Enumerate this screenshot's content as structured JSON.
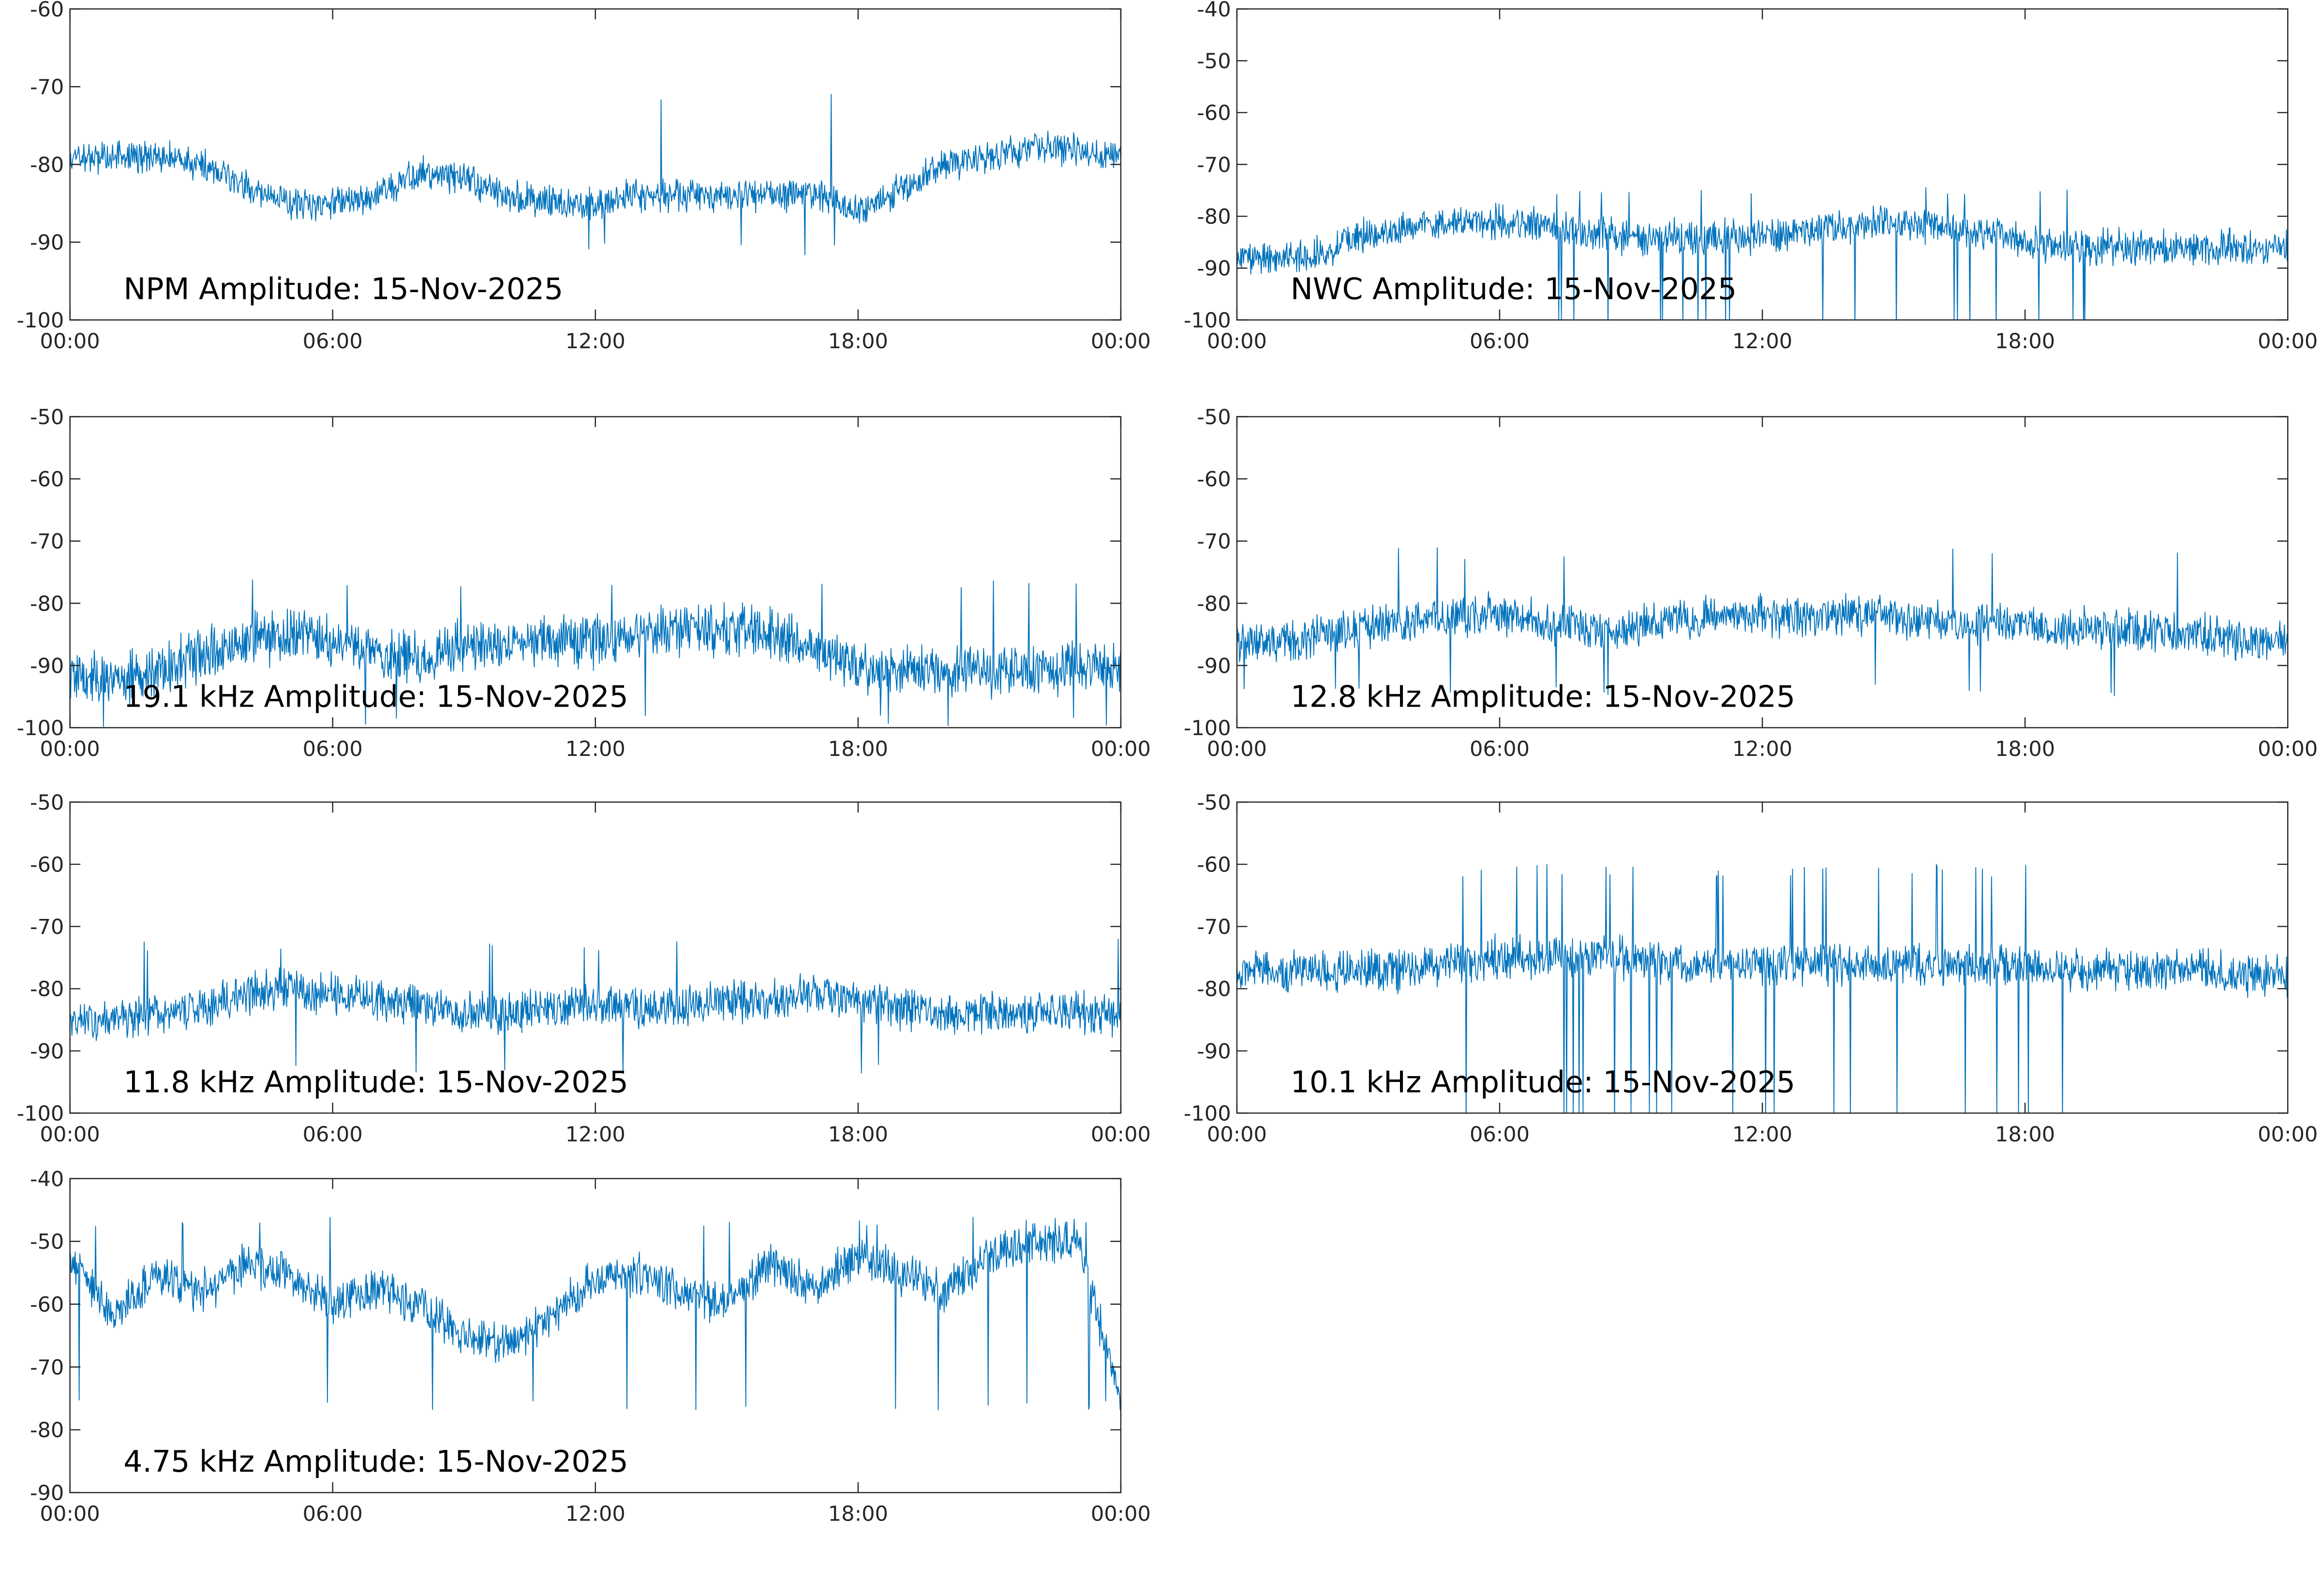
{
  "colors": {
    "trace": "#0072BD",
    "axis": "#262626"
  },
  "chart_data": [
    {
      "type": "line",
      "title": "NPM Amplitude: 15-Nov-2025",
      "ylim": [
        -100,
        -60
      ],
      "yticks": [
        "-100",
        "-90",
        "-80",
        "-70",
        "-60"
      ],
      "xticks": [
        "00:00",
        "06:00",
        "12:00",
        "18:00",
        "00:00"
      ],
      "xlim_hours": [
        0,
        24
      ],
      "profile_hourly": [
        -79,
        -79,
        -79,
        -80,
        -83,
        -85,
        -85,
        -84,
        -81,
        -82,
        -84,
        -85,
        -85,
        -84,
        -84,
        -84,
        -84,
        -84,
        -86,
        -83,
        -80,
        -79,
        -78,
        -78,
        -79
      ],
      "spread": 2.5,
      "spikes": {
        "from": 11.5,
        "to": 17.5,
        "up": -72,
        "down": -90,
        "prob": 0.03
      },
      "seed": 11
    },
    {
      "type": "line",
      "title": "NWC Amplitude: 15-Nov-2025",
      "ylim": [
        -100,
        -40
      ],
      "yticks": [
        "-100",
        "-90",
        "-80",
        "-70",
        "-60",
        "-50",
        "-40"
      ],
      "xticks": [
        "00:00",
        "06:00",
        "12:00",
        "18:00",
        "00:00"
      ],
      "xlim_hours": [
        0,
        24
      ],
      "profile_hourly": [
        -88,
        -88,
        -87,
        -83,
        -82,
        -81,
        -81,
        -82,
        -83,
        -84,
        -84,
        -84,
        -84,
        -83,
        -82,
        -81,
        -82,
        -83,
        -85,
        -86,
        -86,
        -86,
        -86,
        -86,
        -86
      ],
      "spread": 4,
      "spikes": {
        "from": 7,
        "to": 20,
        "up": -76,
        "down": -100,
        "prob": 0.04
      },
      "seed": 22
    },
    {
      "type": "line",
      "title": "19.1 kHz Amplitude: 15-Nov-2025",
      "ylim": [
        -100,
        -50
      ],
      "yticks": [
        "-100",
        "-90",
        "-80",
        "-70",
        "-60",
        "-50"
      ],
      "xticks": [
        "00:00",
        "06:00",
        "12:00",
        "18:00",
        "00:00"
      ],
      "xlim_hours": [
        0,
        24
      ],
      "profile_hourly": [
        -92,
        -92,
        -91,
        -88,
        -86,
        -85,
        -86,
        -88,
        -89,
        -87,
        -86,
        -86,
        -86,
        -85,
        -84,
        -84,
        -85,
        -87,
        -90,
        -91,
        -91,
        -91,
        -91,
        -90,
        -90
      ],
      "spread": 5,
      "spikes": {
        "from": 0,
        "to": 24,
        "up": -78,
        "down": -98,
        "prob": 0.01
      },
      "seed": 33
    },
    {
      "type": "line",
      "title": "12.8 kHz Amplitude: 15-Nov-2025",
      "ylim": [
        -100,
        -50
      ],
      "yticks": [
        "-100",
        "-90",
        "-80",
        "-70",
        "-60",
        "-50"
      ],
      "xticks": [
        "00:00",
        "06:00",
        "12:00",
        "18:00",
        "00:00"
      ],
      "xlim_hours": [
        0,
        24
      ],
      "profile_hourly": [
        -86,
        -86,
        -85,
        -84,
        -83,
        -82,
        -82,
        -83,
        -84,
        -84,
        -83,
        -82,
        -82,
        -82,
        -82,
        -82,
        -83,
        -83,
        -84,
        -84,
        -84,
        -85,
        -85,
        -86,
        -86
      ],
      "spread": 4,
      "spikes": {
        "from": 0,
        "to": 24,
        "up": -73,
        "down": -93,
        "prob": 0.01
      },
      "seed": 44
    },
    {
      "type": "line",
      "title": "11.8 kHz Amplitude: 15-Nov-2025",
      "ylim": [
        -100,
        -50
      ],
      "yticks": [
        "-100",
        "-90",
        "-80",
        "-70",
        "-60",
        "-50"
      ],
      "xticks": [
        "00:00",
        "06:00",
        "12:00",
        "18:00",
        "00:00"
      ],
      "xlim_hours": [
        0,
        24
      ],
      "profile_hourly": [
        -85,
        -85,
        -84,
        -83,
        -81,
        -80,
        -81,
        -82,
        -83,
        -84,
        -84,
        -83,
        -83,
        -83,
        -83,
        -82,
        -82,
        -81,
        -82,
        -83,
        -84,
        -84,
        -84,
        -84,
        -84
      ],
      "spread": 4,
      "spikes": {
        "from": 0,
        "to": 24,
        "up": -74,
        "down": -92,
        "prob": 0.01
      },
      "seed": 55
    },
    {
      "type": "line",
      "title": "10.1 kHz Amplitude: 15-Nov-2025",
      "ylim": [
        -100,
        -50
      ],
      "yticks": [
        "-100",
        "-90",
        "-80",
        "-70",
        "-60",
        "-50"
      ],
      "xticks": [
        "00:00",
        "06:00",
        "12:00",
        "18:00",
        "00:00"
      ],
      "xlim_hours": [
        0,
        24
      ],
      "profile_hourly": [
        -77,
        -77,
        -77,
        -77,
        -77,
        -76,
        -75,
        -75,
        -75,
        -75,
        -76,
        -76,
        -76,
        -76,
        -76,
        -76,
        -76,
        -76,
        -76,
        -77,
        -77,
        -77,
        -77,
        -78,
        -78
      ],
      "spread": 4,
      "spikes": {
        "from": 5,
        "to": 19,
        "up": -62,
        "down": -100,
        "prob": 0.06
      },
      "seed": 66
    },
    {
      "type": "line",
      "title": "4.75 kHz Amplitude: 15-Nov-2025",
      "ylim": [
        -90,
        -40
      ],
      "yticks": [
        "-90",
        "-80",
        "-70",
        "-60",
        "-50",
        "-40"
      ],
      "xticks": [
        "00:00",
        "06:00",
        "12:00",
        "18:00",
        "00:00"
      ],
      "xlim_hours": [
        0,
        24
      ],
      "profile_hourly": [
        -52,
        -62,
        -55,
        -58,
        -54,
        -55,
        -60,
        -58,
        -60,
        -65,
        -67,
        -62,
        -56,
        -55,
        -58,
        -60,
        -53,
        -58,
        -52,
        -55,
        -58,
        -52,
        -50,
        -50,
        -75
      ],
      "spread": 4,
      "spikes": {
        "from": 0,
        "to": 24,
        "up": -48,
        "down": -75,
        "prob": 0.02
      },
      "seed": 77
    }
  ]
}
